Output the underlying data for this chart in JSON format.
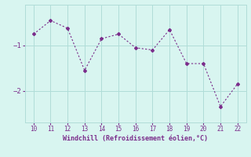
{
  "x_points": [
    10,
    11,
    12,
    13,
    14,
    15,
    16,
    17,
    18,
    19,
    20,
    21,
    22
  ],
  "y_points": [
    -0.75,
    -0.45,
    -0.62,
    -1.55,
    -0.85,
    -0.75,
    -1.05,
    -1.1,
    -0.65,
    -1.4,
    -1.4,
    -2.35,
    -1.85
  ],
  "xlim": [
    9.5,
    22.5
  ],
  "ylim": [
    -2.7,
    -0.1
  ],
  "yticks": [
    -2,
    -1
  ],
  "xticks": [
    10,
    11,
    12,
    13,
    14,
    15,
    16,
    17,
    18,
    19,
    20,
    21,
    22
  ],
  "line_color": "#7B2D8B",
  "bg_color": "#d8f5f0",
  "grid_color": "#b0ddd8",
  "xlabel": "Windchill (Refroidissement éolien,°C)",
  "xlabel_color": "#7B2D8B",
  "tick_color": "#7B2D8B"
}
